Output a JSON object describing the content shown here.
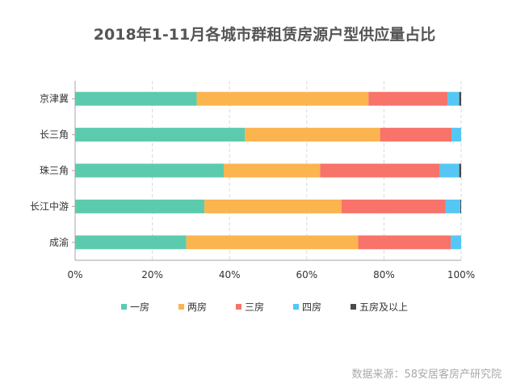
{
  "chart_data": {
    "type": "bar",
    "orientation": "horizontal",
    "stacked": true,
    "title": "2018年1-11月各城市群租赁房源户型供应量占比",
    "categories": [
      "京津冀",
      "长三角",
      "珠三角",
      "长江中游",
      "成渝"
    ],
    "series": [
      {
        "name": "一房",
        "color": "#5ccbad",
        "values": [
          31.5,
          44.0,
          38.5,
          33.5,
          28.8
        ]
      },
      {
        "name": "两房",
        "color": "#fbb44e",
        "values": [
          44.5,
          35.0,
          25.0,
          35.5,
          44.5
        ]
      },
      {
        "name": "三房",
        "color": "#f87369",
        "values": [
          20.5,
          18.5,
          31.0,
          27.0,
          24.0
        ]
      },
      {
        "name": "四房",
        "color": "#55c7f4",
        "values": [
          3.0,
          2.5,
          5.0,
          3.8,
          2.7
        ]
      },
      {
        "name": "五房及以上",
        "color": "#4a4a4a",
        "values": [
          0.5,
          0.0,
          0.5,
          0.2,
          0.0
        ]
      }
    ],
    "xlim": [
      0,
      100
    ],
    "x_ticks": [
      "0%",
      "20%",
      "40%",
      "60%",
      "80%",
      "100%"
    ],
    "grid": "vertical-dashed",
    "legend_position": "bottom"
  },
  "source": "数据来源：58安居客房产研究院"
}
